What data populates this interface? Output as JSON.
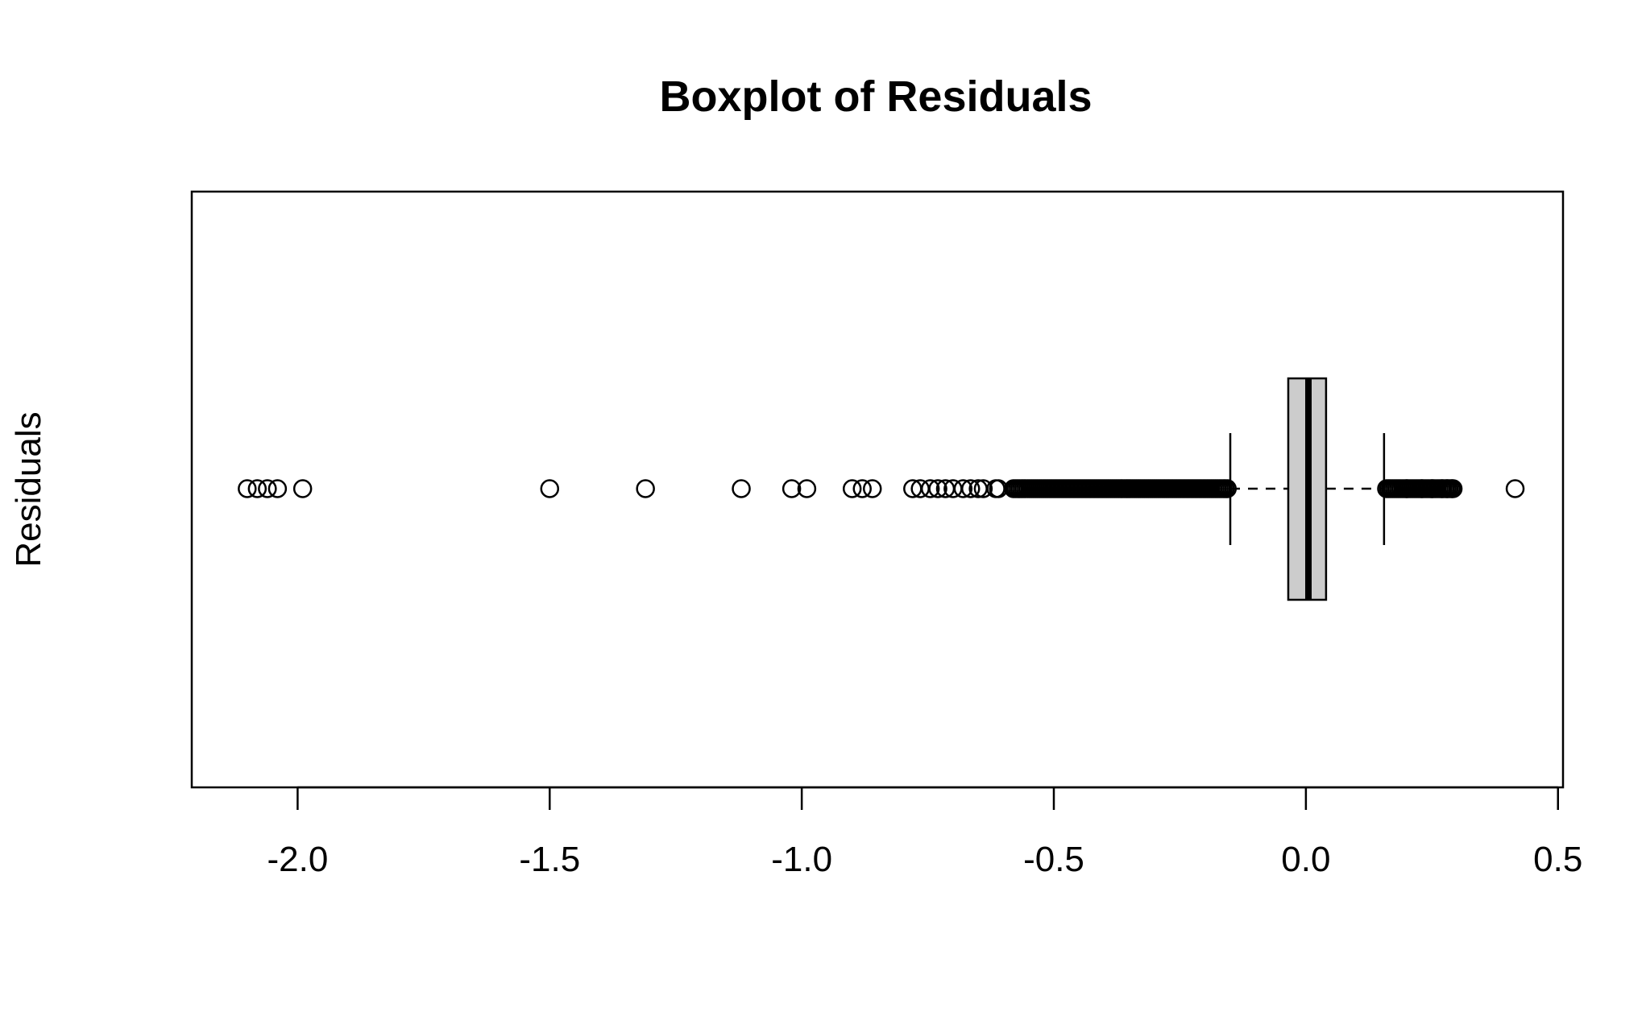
{
  "chart_data": {
    "type": "boxplot",
    "orientation": "horizontal",
    "title": "Boxplot of Residuals",
    "ylabel": "Residuals",
    "xlabel": "",
    "xlim": [
      -2.21,
      0.51
    ],
    "xticks": [
      -2.0,
      -1.5,
      -1.0,
      -0.5,
      0.0,
      0.5
    ],
    "xtick_labels": [
      "-2.0",
      "-1.5",
      "-1.0",
      "-0.5",
      "0.0",
      "0.5"
    ],
    "box": {
      "whisker_low": -0.15,
      "q1": -0.035,
      "median": 0.005,
      "q3": 0.04,
      "whisker_high": 0.155
    },
    "outliers_low_individual": [
      -2.1,
      -2.08,
      -2.06,
      -2.04,
      -1.99,
      -1.5,
      -1.31,
      -1.12,
      -1.02,
      -0.99,
      -0.9,
      -0.88,
      -0.86,
      -0.78,
      -0.765,
      -0.745,
      -0.73,
      -0.715,
      -0.7,
      -0.68,
      -0.665,
      -0.65,
      -0.64,
      -0.615,
      -0.61
    ],
    "outliers_low_dense_range": [
      -0.58,
      -0.155
    ],
    "outliers_high_dense_range": [
      0.16,
      0.295
    ],
    "outliers_high_individual": [
      0.2,
      0.23,
      0.25,
      0.27,
      0.28,
      0.29,
      0.415
    ],
    "box_fill": "#cccccc",
    "point_style": "open-circle",
    "grid": false
  }
}
